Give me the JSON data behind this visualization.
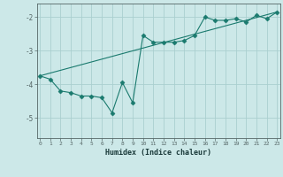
{
  "title": "",
  "xlabel": "Humidex (Indice chaleur)",
  "ylabel": "",
  "background_color": "#cce8e8",
  "line_color": "#1a7a6e",
  "grid_color": "#aacfcf",
  "x_ticks": [
    0,
    1,
    2,
    3,
    4,
    5,
    6,
    7,
    8,
    9,
    10,
    11,
    12,
    13,
    14,
    15,
    16,
    17,
    18,
    19,
    20,
    21,
    22,
    23
  ],
  "y_ticks": [
    -5,
    -4,
    -3,
    -2
  ],
  "xlim": [
    -0.3,
    23.3
  ],
  "ylim": [
    -5.6,
    -1.6
  ],
  "series1_x": [
    0,
    1,
    2,
    3,
    4,
    5,
    6,
    7,
    8,
    9,
    10,
    11,
    12,
    13,
    14,
    15,
    16,
    17,
    18,
    19,
    20,
    21,
    22,
    23
  ],
  "series1_y": [
    -3.75,
    -3.85,
    -4.2,
    -4.25,
    -4.35,
    -4.35,
    -4.4,
    -4.85,
    -3.95,
    -4.55,
    -2.55,
    -2.75,
    -2.75,
    -2.75,
    -2.7,
    -2.55,
    -2.0,
    -2.1,
    -2.1,
    -2.05,
    -2.15,
    -1.95,
    -2.05,
    -1.85
  ],
  "series2_x": [
    0,
    23
  ],
  "series2_y": [
    -3.75,
    -1.85
  ],
  "marker": "D",
  "marker_size": 2.5,
  "linewidth": 0.8
}
